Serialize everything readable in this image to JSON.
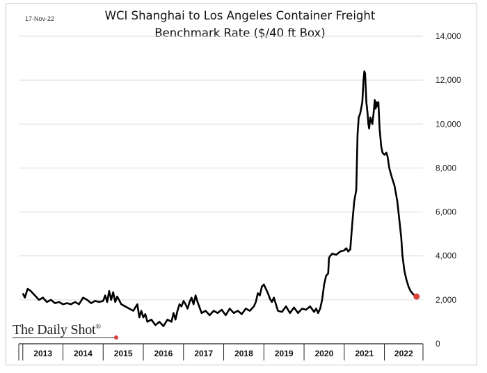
{
  "date_label": "17-Nov-22",
  "brand": {
    "name": "The Daily Shot",
    "mark": "®"
  },
  "chart_data": {
    "type": "line",
    "title": "WCI Shanghai to Los Angeles Container Freight Benchmark Rate ($/40 ft Box)",
    "title_lines": [
      "WCI Shanghai to Los Angeles Container Freight",
      "Benchmark Rate ($/40 ft Box)"
    ],
    "xlabel": "",
    "ylabel": "",
    "ylim": [
      0,
      14000
    ],
    "y_ticks": [
      0,
      2000,
      4000,
      6000,
      8000,
      10000,
      12000,
      14000
    ],
    "y_tick_labels": [
      "0",
      "2,000",
      "4,000",
      "6,000",
      "8,000",
      "10,000",
      "12,000",
      "14,000"
    ],
    "y_axis_side": "right",
    "x_range": [
      2012.9,
      2022.96
    ],
    "x_year_labels": [
      "2013",
      "2014",
      "2015",
      "2016",
      "2017",
      "2018",
      "2019",
      "2020",
      "2021",
      "2022"
    ],
    "grid": "horizontal",
    "line_color": "#000000",
    "last_point_color": "#d9443a",
    "series": [
      {
        "values": [
          [
            2013.0,
            2300
          ],
          [
            2013.05,
            2100
          ],
          [
            2013.12,
            2500
          ],
          [
            2013.2,
            2400
          ],
          [
            2013.3,
            2200
          ],
          [
            2013.4,
            2000
          ],
          [
            2013.5,
            2100
          ],
          [
            2013.6,
            1900
          ],
          [
            2013.7,
            2000
          ],
          [
            2013.8,
            1850
          ],
          [
            2013.9,
            1900
          ],
          [
            2014.0,
            1800
          ],
          [
            2014.1,
            1850
          ],
          [
            2014.2,
            1800
          ],
          [
            2014.3,
            1900
          ],
          [
            2014.4,
            1800
          ],
          [
            2014.5,
            2100
          ],
          [
            2014.6,
            2000
          ],
          [
            2014.7,
            1850
          ],
          [
            2014.8,
            1950
          ],
          [
            2014.9,
            1900
          ],
          [
            2015.0,
            1950
          ],
          [
            2015.05,
            2200
          ],
          [
            2015.1,
            1900
          ],
          [
            2015.15,
            2400
          ],
          [
            2015.2,
            2000
          ],
          [
            2015.25,
            2350
          ],
          [
            2015.3,
            1900
          ],
          [
            2015.35,
            2150
          ],
          [
            2015.45,
            1800
          ],
          [
            2015.55,
            1700
          ],
          [
            2015.65,
            1600
          ],
          [
            2015.75,
            1500
          ],
          [
            2015.85,
            1800
          ],
          [
            2015.9,
            1200
          ],
          [
            2015.95,
            1500
          ],
          [
            2016.0,
            1200
          ],
          [
            2016.05,
            1350
          ],
          [
            2016.1,
            1000
          ],
          [
            2016.2,
            1100
          ],
          [
            2016.3,
            850
          ],
          [
            2016.4,
            1000
          ],
          [
            2016.5,
            800
          ],
          [
            2016.6,
            1100
          ],
          [
            2016.7,
            1000
          ],
          [
            2016.75,
            1400
          ],
          [
            2016.8,
            1100
          ],
          [
            2016.85,
            1500
          ],
          [
            2016.9,
            1800
          ],
          [
            2016.95,
            1700
          ],
          [
            2017.0,
            1950
          ],
          [
            2017.05,
            1800
          ],
          [
            2017.1,
            1600
          ],
          [
            2017.15,
            1900
          ],
          [
            2017.2,
            2100
          ],
          [
            2017.25,
            1800
          ],
          [
            2017.3,
            2200
          ],
          [
            2017.35,
            1900
          ],
          [
            2017.45,
            1400
          ],
          [
            2017.55,
            1500
          ],
          [
            2017.65,
            1300
          ],
          [
            2017.75,
            1500
          ],
          [
            2017.85,
            1400
          ],
          [
            2017.95,
            1550
          ],
          [
            2018.05,
            1300
          ],
          [
            2018.15,
            1600
          ],
          [
            2018.25,
            1400
          ],
          [
            2018.35,
            1500
          ],
          [
            2018.45,
            1350
          ],
          [
            2018.55,
            1600
          ],
          [
            2018.65,
            1500
          ],
          [
            2018.75,
            1700
          ],
          [
            2018.8,
            1900
          ],
          [
            2018.85,
            2300
          ],
          [
            2018.9,
            2200
          ],
          [
            2018.95,
            2600
          ],
          [
            2019.0,
            2700
          ],
          [
            2019.05,
            2500
          ],
          [
            2019.1,
            2300
          ],
          [
            2019.15,
            2050
          ],
          [
            2019.2,
            1900
          ],
          [
            2019.25,
            2100
          ],
          [
            2019.3,
            1800
          ],
          [
            2019.35,
            1500
          ],
          [
            2019.45,
            1450
          ],
          [
            2019.55,
            1700
          ],
          [
            2019.65,
            1400
          ],
          [
            2019.75,
            1650
          ],
          [
            2019.85,
            1400
          ],
          [
            2019.95,
            1600
          ],
          [
            2020.05,
            1550
          ],
          [
            2020.15,
            1700
          ],
          [
            2020.25,
            1450
          ],
          [
            2020.3,
            1600
          ],
          [
            2020.35,
            1400
          ],
          [
            2020.4,
            1600
          ],
          [
            2020.45,
            2000
          ],
          [
            2020.5,
            2700
          ],
          [
            2020.55,
            3100
          ],
          [
            2020.6,
            3200
          ],
          [
            2020.62,
            3900
          ],
          [
            2020.65,
            4000
          ],
          [
            2020.7,
            4100
          ],
          [
            2020.8,
            4050
          ],
          [
            2020.9,
            4200
          ],
          [
            2021.0,
            4250
          ],
          [
            2021.05,
            4350
          ],
          [
            2021.1,
            4200
          ],
          [
            2021.15,
            4300
          ],
          [
            2021.2,
            5500
          ],
          [
            2021.25,
            6500
          ],
          [
            2021.3,
            7000
          ],
          [
            2021.33,
            9500
          ],
          [
            2021.36,
            10300
          ],
          [
            2021.4,
            10500
          ],
          [
            2021.45,
            11000
          ],
          [
            2021.48,
            12000
          ],
          [
            2021.5,
            12400
          ],
          [
            2021.52,
            12300
          ],
          [
            2021.55,
            11000
          ],
          [
            2021.58,
            10500
          ],
          [
            2021.6,
            10000
          ],
          [
            2021.62,
            9800
          ],
          [
            2021.65,
            10300
          ],
          [
            2021.7,
            10000
          ],
          [
            2021.73,
            10500
          ],
          [
            2021.76,
            11100
          ],
          [
            2021.78,
            10700
          ],
          [
            2021.8,
            11000
          ],
          [
            2021.82,
            10800
          ],
          [
            2021.85,
            11000
          ],
          [
            2021.88,
            9800
          ],
          [
            2021.92,
            9000
          ],
          [
            2021.95,
            8700
          ],
          [
            2022.0,
            8600
          ],
          [
            2022.05,
            8700
          ],
          [
            2022.08,
            8500
          ],
          [
            2022.12,
            8000
          ],
          [
            2022.18,
            7600
          ],
          [
            2022.25,
            7200
          ],
          [
            2022.32,
            6500
          ],
          [
            2022.38,
            5500
          ],
          [
            2022.42,
            4800
          ],
          [
            2022.45,
            4000
          ],
          [
            2022.5,
            3300
          ],
          [
            2022.55,
            2900
          ],
          [
            2022.6,
            2600
          ],
          [
            2022.65,
            2400
          ],
          [
            2022.72,
            2250
          ],
          [
            2022.8,
            2150
          ]
        ]
      }
    ]
  }
}
